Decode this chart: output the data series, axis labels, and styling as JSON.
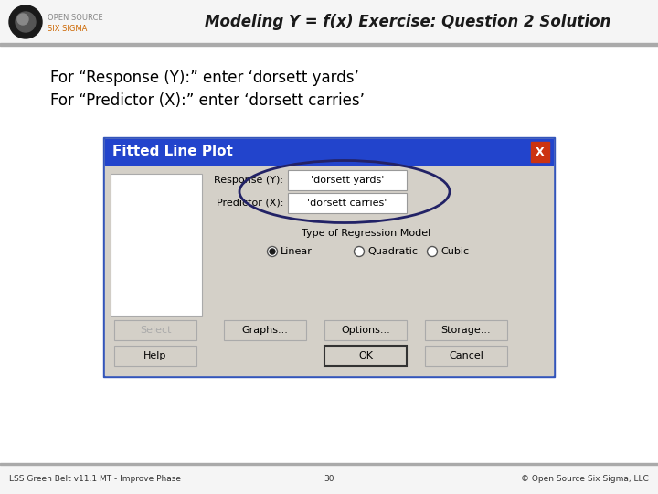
{
  "title": "Modeling Y = f(x) Exercise: Question 2 Solution",
  "body_text_line1": "For “Response (Y):” enter ‘dorsett yards’",
  "body_text_line2": "For “Predictor (X):” enter ‘dorsett carries’",
  "footer_text_left": "LSS Green Belt v11.1 MT - Improve Phase",
  "footer_text_center": "30",
  "footer_text_right": "© Open Source Six Sigma, LLC",
  "dialog_title": "Fitted Line Plot",
  "dialog_title_bg": "#2244cc",
  "dialog_bg": "#d4d0c8",
  "dialog_border": "#3355bb",
  "response_label": "Response (Y):",
  "response_value": "'dorsett yards'",
  "predictor_label": "Predictor (X):",
  "predictor_value": "'dorsett carries'",
  "regression_label": "Type of Regression Model",
  "radio_options": [
    "Linear",
    "Quadratic",
    "Cubic"
  ],
  "buttons_row1": [
    "Select",
    "Graphs...",
    "Options...",
    "Storage..."
  ],
  "header_bg": "#f5f5f5",
  "header_line_color": "#aaaaaa",
  "logo_dark": "#2a2a2a",
  "logo_mid": "#555555",
  "logo_light": "#888888",
  "os_text_color": "#888888",
  "six_sigma_color": "#cc6600",
  "footer_line_color": "#aaaaaa",
  "footer_bg": "#f5f5f5",
  "close_btn_color": "#cc3311",
  "select_btn_color": "#cccccc",
  "ok_border": "#333333"
}
